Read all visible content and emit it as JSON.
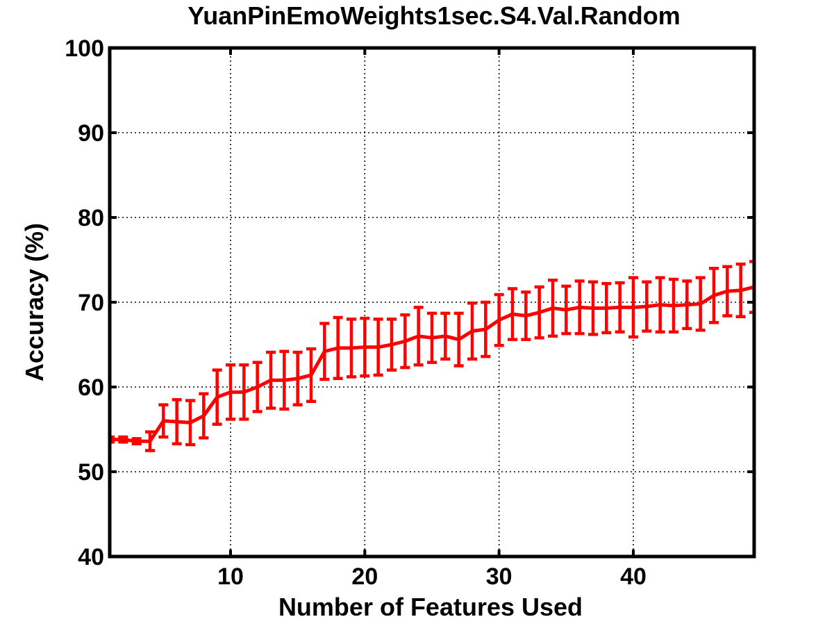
{
  "chart_data": {
    "type": "line",
    "title": "YuanPinEmoWeights1sec.S4.Val.Random",
    "xlabel": "Number of Features Used",
    "ylabel": "Accuracy (%)",
    "xlim": [
      1,
      49
    ],
    "ylim": [
      40,
      100
    ],
    "xticks": [
      10,
      20,
      30,
      40
    ],
    "xtick_labels": [
      "10",
      "20",
      "30",
      "40"
    ],
    "yticks": [
      40,
      50,
      60,
      70,
      80,
      90,
      100
    ],
    "ytick_labels": [
      "40",
      "50",
      "60",
      "70",
      "80",
      "90",
      "100"
    ],
    "grid": true,
    "legend": "none",
    "colors": {
      "series": "#ff0000",
      "axes": "#000000"
    },
    "series": [
      {
        "x": [
          1,
          2,
          3,
          4,
          5,
          6,
          7,
          8,
          9,
          10,
          11,
          12,
          13,
          14,
          15,
          16,
          17,
          18,
          19,
          20,
          21,
          22,
          23,
          24,
          25,
          26,
          27,
          28,
          29,
          30,
          31,
          32,
          33,
          34,
          35,
          36,
          37,
          38,
          39,
          40,
          41,
          42,
          43,
          44,
          45,
          46,
          47,
          48,
          49
        ],
        "y": [
          53.8,
          53.8,
          53.6,
          53.6,
          56.0,
          55.9,
          55.8,
          56.6,
          58.8,
          59.4,
          59.4,
          60.0,
          60.8,
          60.8,
          61.0,
          61.4,
          64.2,
          64.6,
          64.6,
          64.7,
          64.7,
          65.0,
          65.4,
          66.0,
          65.8,
          66.0,
          65.6,
          66.6,
          66.8,
          67.9,
          68.6,
          68.4,
          68.8,
          69.3,
          69.1,
          69.4,
          69.3,
          69.3,
          69.4,
          69.4,
          69.5,
          69.7,
          69.6,
          69.7,
          69.8,
          70.8,
          71.3,
          71.4,
          71.8
        ],
        "err": [
          0.3,
          0.3,
          0.3,
          1.1,
          1.9,
          2.6,
          2.6,
          2.6,
          3.2,
          3.2,
          3.2,
          2.9,
          3.3,
          3.4,
          3.1,
          3.1,
          3.3,
          3.6,
          3.4,
          3.4,
          3.3,
          3.0,
          3.1,
          3.4,
          2.9,
          2.7,
          3.1,
          3.3,
          3.2,
          3.0,
          3.0,
          2.8,
          3.0,
          3.3,
          2.8,
          3.1,
          3.1,
          2.9,
          2.9,
          3.5,
          2.9,
          3.2,
          3.1,
          2.8,
          3.1,
          3.2,
          2.9,
          3.1,
          3.0
        ]
      }
    ]
  }
}
